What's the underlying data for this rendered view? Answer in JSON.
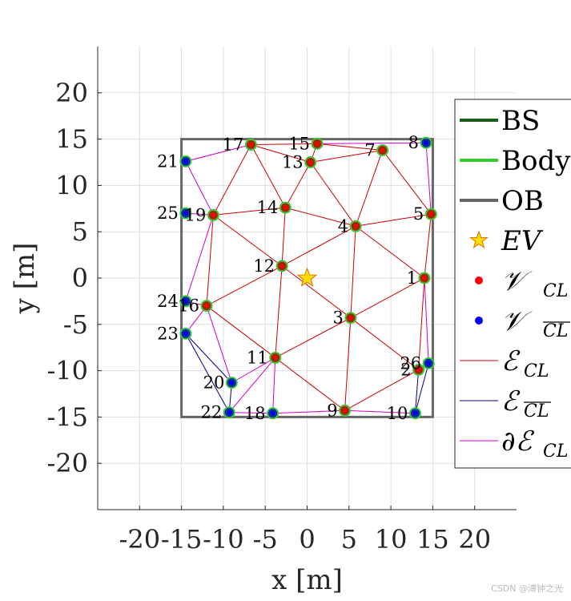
{
  "chart_data": {
    "type": "scatter",
    "title": "",
    "xlabel": "x [m]",
    "ylabel": "y [m]",
    "xlim": [
      -25,
      25
    ],
    "ylim": [
      -25,
      25
    ],
    "xticks": [
      -20,
      -15,
      -10,
      -5,
      0,
      5,
      10,
      15,
      20
    ],
    "yticks": [
      -20,
      -15,
      -10,
      -5,
      0,
      5,
      10,
      15,
      20
    ],
    "grid": true,
    "legend_position": "east-outside",
    "observation_boundary": [
      [
        -15,
        -15
      ],
      [
        15,
        -15
      ],
      [
        15,
        15
      ],
      [
        -15,
        15
      ]
    ],
    "ev": [
      0,
      0
    ],
    "nodes": [
      {
        "id": "1",
        "x": 14.0,
        "y": 0.0,
        "type": "CL"
      },
      {
        "id": "3",
        "x": 5.2,
        "y": -4.3,
        "type": "CL"
      },
      {
        "id": "4",
        "x": 5.8,
        "y": 5.6,
        "type": "CL"
      },
      {
        "id": "5",
        "x": 14.8,
        "y": 6.9,
        "type": "CL"
      },
      {
        "id": "7",
        "x": 9.0,
        "y": 13.8,
        "type": "CL"
      },
      {
        "id": "8",
        "x": 14.2,
        "y": 14.6,
        "type": "nonCL"
      },
      {
        "id": "9",
        "x": 4.5,
        "y": -14.3,
        "type": "CL"
      },
      {
        "id": "10",
        "x": 12.9,
        "y": -14.6,
        "type": "nonCL"
      },
      {
        "id": "11",
        "x": -3.8,
        "y": -8.6,
        "type": "CL"
      },
      {
        "id": "12",
        "x": -3.0,
        "y": 1.3,
        "type": "CL"
      },
      {
        "id": "13",
        "x": 0.4,
        "y": 12.5,
        "type": "CL"
      },
      {
        "id": "14",
        "x": -2.6,
        "y": 7.6,
        "type": "CL"
      },
      {
        "id": "15",
        "x": 1.2,
        "y": 14.5,
        "type": "CL"
      },
      {
        "id": "16",
        "x": -12.0,
        "y": -3.0,
        "type": "CL"
      },
      {
        "id": "17",
        "x": -6.7,
        "y": 14.4,
        "type": "CL"
      },
      {
        "id": "18",
        "x": -4.1,
        "y": -14.6,
        "type": "nonCL"
      },
      {
        "id": "19",
        "x": -11.2,
        "y": 6.8,
        "type": "CL"
      },
      {
        "id": "20",
        "x": -9.0,
        "y": -11.3,
        "type": "nonCL"
      },
      {
        "id": "21",
        "x": -14.5,
        "y": 12.6,
        "type": "nonCL"
      },
      {
        "id": "22",
        "x": -9.3,
        "y": -14.5,
        "type": "nonCL"
      },
      {
        "id": "23",
        "x": -14.5,
        "y": -6.0,
        "type": "nonCL"
      },
      {
        "id": "24",
        "x": -14.5,
        "y": -2.5,
        "type": "nonCL"
      },
      {
        "id": "25",
        "x": -14.5,
        "y": 7.0,
        "type": "nonCL"
      },
      {
        "id": "26",
        "x": 14.5,
        "y": -9.2,
        "type": "nonCL"
      },
      {
        "id": "2",
        "x": 13.3,
        "y": -9.9,
        "type": "CL"
      }
    ],
    "edges_cl": [
      [
        "17",
        "15"
      ],
      [
        "17",
        "13"
      ],
      [
        "15",
        "7"
      ],
      [
        "13",
        "7"
      ],
      [
        "7",
        "5"
      ],
      [
        "17",
        "14"
      ],
      [
        "17",
        "19"
      ],
      [
        "13",
        "14"
      ],
      [
        "13",
        "4"
      ],
      [
        "7",
        "4"
      ],
      [
        "14",
        "19"
      ],
      [
        "14",
        "4"
      ],
      [
        "4",
        "5"
      ],
      [
        "4",
        "1"
      ],
      [
        "5",
        "1"
      ],
      [
        "19",
        "12"
      ],
      [
        "19",
        "16"
      ],
      [
        "14",
        "12"
      ],
      [
        "12",
        "4"
      ],
      [
        "12",
        "3"
      ],
      [
        "4",
        "3"
      ],
      [
        "1",
        "3"
      ],
      [
        "12",
        "16"
      ],
      [
        "12",
        "11"
      ],
      [
        "16",
        "11"
      ],
      [
        "3",
        "11"
      ],
      [
        "3",
        "9"
      ],
      [
        "3",
        "2"
      ],
      [
        "11",
        "9"
      ],
      [
        "1",
        "2"
      ],
      [
        "9",
        "2"
      ],
      [
        "15",
        "13"
      ]
    ],
    "edges_noncl": [
      [
        "23",
        "20"
      ],
      [
        "23",
        "22"
      ],
      [
        "20",
        "22"
      ],
      [
        "26",
        "10"
      ],
      [
        "2",
        "10"
      ]
    ],
    "edges_boundary": [
      [
        "21",
        "17"
      ],
      [
        "21",
        "19"
      ],
      [
        "15",
        "8"
      ],
      [
        "8",
        "5"
      ],
      [
        "25",
        "19"
      ],
      [
        "24",
        "16"
      ],
      [
        "24",
        "19"
      ],
      [
        "23",
        "16"
      ],
      [
        "16",
        "20"
      ],
      [
        "20",
        "11"
      ],
      [
        "11",
        "22"
      ],
      [
        "22",
        "18"
      ],
      [
        "18",
        "11"
      ],
      [
        "18",
        "9"
      ],
      [
        "9",
        "10"
      ],
      [
        "1",
        "26"
      ],
      [
        "26",
        "2"
      ]
    ],
    "legend": [
      {
        "key": "bs",
        "label": "BS",
        "color": "#1a5e1a"
      },
      {
        "key": "body",
        "label": "Body",
        "color": "#32cd32"
      },
      {
        "key": "ob",
        "label": "OB",
        "color": "#666666"
      },
      {
        "key": "ev",
        "label": "EV",
        "color": "#ffdd00"
      },
      {
        "key": "v_cl",
        "label": "𝒱",
        "sub": "CL",
        "color": "#ff0000"
      },
      {
        "key": "v_noncl",
        "label": "𝒱",
        "sub": "CL",
        "overline": true,
        "color": "#0000ff"
      },
      {
        "key": "e_cl",
        "label": "ℰ",
        "sub": "CL",
        "color": "#cc0000"
      },
      {
        "key": "e_noncl",
        "label": "ℰ",
        "sub": "CL",
        "overline": true,
        "color": "#000080"
      },
      {
        "key": "e_boundary",
        "label": "∂ℰ",
        "sub": "CL",
        "color": "#cc00cc"
      }
    ]
  },
  "watermark": "CSDN @溥钟之光"
}
